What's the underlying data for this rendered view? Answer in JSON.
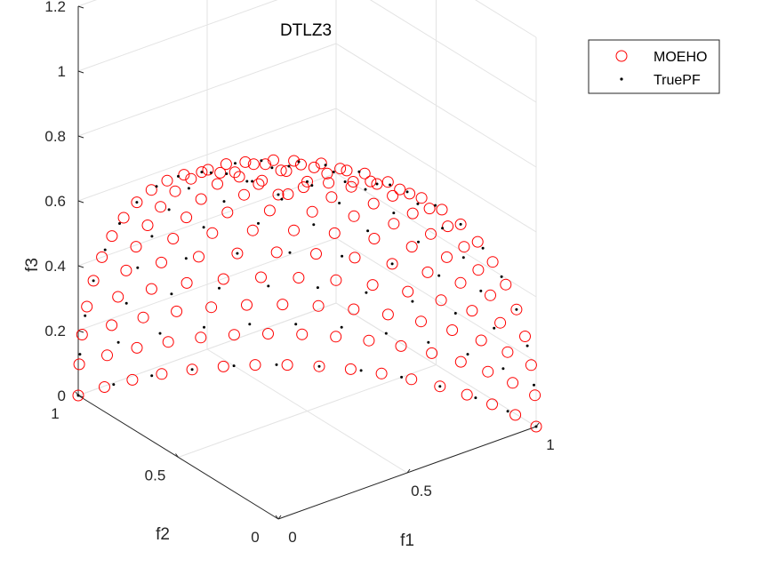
{
  "chart_data": {
    "type": "scatter",
    "projection": "3d",
    "title": "DTLZ3",
    "xlabel": "f1",
    "ylabel": "f2",
    "zlabel": "f3",
    "xlim": [
      0,
      1
    ],
    "ylim": [
      0,
      1
    ],
    "zlim": [
      0,
      1.2
    ],
    "xticks": [
      "0",
      "0.5",
      "1"
    ],
    "yticks": [
      "0",
      "0.5",
      "1"
    ],
    "zticks": [
      "0",
      "0.2",
      "0.4",
      "0.6",
      "0.8",
      "1",
      "1.2"
    ],
    "grid": true,
    "legend_position": "top-right",
    "surface": "unit sphere octant, f1^2 + f2^2 + f3^2 = 1",
    "series": [
      {
        "name": "MOEHO",
        "marker": "open-circle",
        "color": "#ff0000",
        "grid_divisions": 16,
        "x": [],
        "y": [],
        "z": []
      },
      {
        "name": "TruePF",
        "marker": "dot",
        "color": "#000000",
        "grid_divisions": 12,
        "x": [],
        "y": [],
        "z": []
      }
    ]
  }
}
